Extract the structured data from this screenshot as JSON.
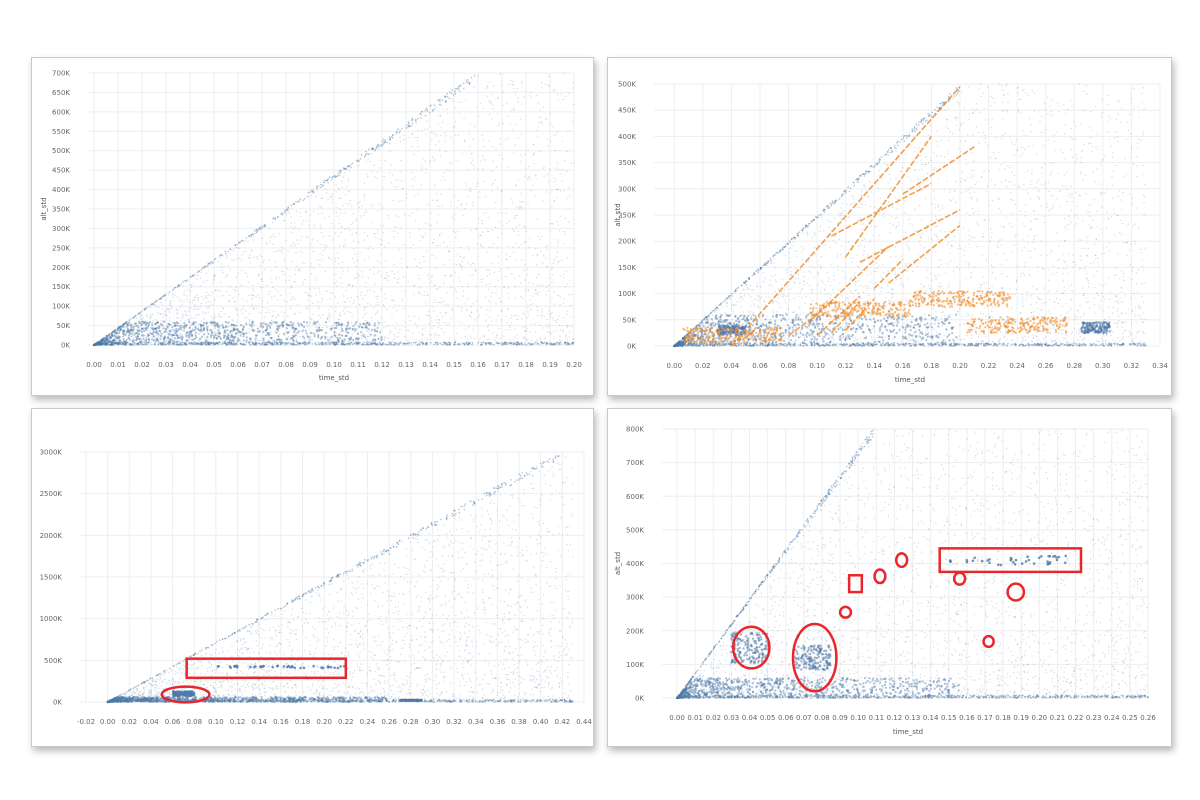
{
  "colors": {
    "series_blue": "#4e79a7",
    "series_orange": "#f28e2b",
    "highlight_red": "#e8262b",
    "grid": "#eeeeee",
    "tick_text": "#666666"
  },
  "chart_data": [
    {
      "id": "tl",
      "type": "scatter",
      "xlabel": "time_std",
      "ylabel": "alt_std",
      "xticks": [
        "0.00",
        "0.01",
        "0.02",
        "0.03",
        "0.04",
        "0.05",
        "0.06",
        "0.07",
        "0.08",
        "0.09",
        "0.10",
        "0.11",
        "0.12",
        "0.13",
        "0.14",
        "0.15",
        "0.16",
        "0.17",
        "0.18",
        "0.19",
        "0.20"
      ],
      "yticks": [
        "0K",
        "50K",
        "100K",
        "150K",
        "200K",
        "250K",
        "300K",
        "350K",
        "400K",
        "450K",
        "500K",
        "550K",
        "600K",
        "650K",
        "700K"
      ],
      "xlim": [
        0,
        0.2
      ],
      "ylim": [
        0,
        700000
      ],
      "grid": true,
      "series": [
        {
          "color": "#4e79a7",
          "pattern": {
            "fan_slope_k_per_unit": 4400,
            "edge_line": [
              [
                0.0,
                0
              ],
              [
                0.15,
                670
              ]
            ],
            "dense_core": [
              [
                0.0,
                0
              ],
              [
                0.06,
                40
              ]
            ],
            "x_max": 0.2
          }
        }
      ]
    },
    {
      "id": "tr",
      "type": "scatter",
      "xlabel": "time_std",
      "ylabel": "alt_std",
      "xticks": [
        "0.00",
        "0.02",
        "0.04",
        "0.06",
        "0.08",
        "0.10",
        "0.12",
        "0.14",
        "0.16",
        "0.18",
        "0.20",
        "0.22",
        "0.24",
        "0.26",
        "0.28",
        "0.30",
        "0.32",
        "0.34"
      ],
      "yticks": [
        "0K",
        "50K",
        "100K",
        "150K",
        "200K",
        "250K",
        "300K",
        "350K",
        "400K",
        "450K",
        "500K"
      ],
      "xlim": [
        -0.01,
        0.34
      ],
      "ylim": [
        0,
        500000
      ],
      "grid": true,
      "series": [
        {
          "color": "#4e79a7",
          "pattern": {
            "fan_slope_k_per_unit": 2500,
            "x_max": 0.33,
            "clusters": [
              [
                0.04,
                30
              ],
              [
                0.295,
                35
              ]
            ]
          }
        },
        {
          "color": "#f28e2b",
          "segments": [
            [
              [
                0.04,
                0
              ],
              [
                0.2,
                495
              ]
            ],
            [
              [
                0.1,
                60
              ],
              [
                0.15,
                190
              ]
            ],
            [
              [
                0.12,
                170
              ],
              [
                0.18,
                400
              ]
            ],
            [
              [
                0.11,
                210
              ],
              [
                0.18,
                310
              ]
            ],
            [
              [
                0.13,
                160
              ],
              [
                0.2,
                260
              ]
            ],
            [
              [
                0.15,
                120
              ],
              [
                0.2,
                230
              ]
            ],
            [
              [
                0.16,
                290
              ],
              [
                0.21,
                380
              ]
            ],
            [
              [
                0.08,
                20
              ],
              [
                0.1,
                60
              ]
            ],
            [
              [
                0.1,
                20
              ],
              [
                0.13,
                95
              ]
            ],
            [
              [
                0.11,
                25
              ],
              [
                0.13,
                85
              ]
            ],
            [
              [
                0.12,
                30
              ],
              [
                0.14,
                90
              ]
            ],
            [
              [
                0.14,
                110
              ],
              [
                0.16,
                165
              ]
            ]
          ],
          "clusters": [
            [
              0.24,
              40
            ],
            [
              0.2,
              90
            ],
            [
              0.13,
              70
            ],
            [
              0.04,
              20
            ]
          ]
        }
      ]
    },
    {
      "id": "bl",
      "type": "scatter",
      "xlabel": "",
      "ylabel": "",
      "xticks": [
        "-0.02",
        "0.00",
        "0.02",
        "0.04",
        "0.06",
        "0.08",
        "0.10",
        "0.12",
        "0.14",
        "0.16",
        "0.18",
        "0.20",
        "0.22",
        "0.24",
        "0.26",
        "0.28",
        "0.30",
        "0.32",
        "0.34",
        "0.36",
        "0.38",
        "0.40",
        "0.42",
        "0.44"
      ],
      "yticks": [
        "0K",
        "500K",
        "1000K",
        "1500K",
        "2000K",
        "2500K",
        "3000K"
      ],
      "xlim": [
        -0.02,
        0.44
      ],
      "ylim": [
        0,
        3000000
      ],
      "grid": true,
      "series": [
        {
          "color": "#4e79a7",
          "pattern": {
            "fan_slope_k_per_unit": 7200,
            "x_max": 0.43,
            "clusters": [
              [
                0.07,
                100
              ],
              [
                0.28,
                20
              ]
            ],
            "row_y_k": 420,
            "row_x": [
              0.09,
              0.22
            ]
          }
        }
      ],
      "highlights": [
        {
          "shape": "ellipse",
          "cx": 0.072,
          "cy": 90,
          "rx": 0.022,
          "ry": 95
        },
        {
          "shape": "rect",
          "x0": 0.073,
          "y0": 290,
          "x1": 0.22,
          "y1": 520
        }
      ]
    },
    {
      "id": "br",
      "type": "scatter",
      "xlabel": "time_std",
      "ylabel": "alt_std",
      "xticks": [
        "0.00",
        "0.01",
        "0.02",
        "0.03",
        "0.04",
        "0.05",
        "0.06",
        "0.07",
        "0.08",
        "0.09",
        "0.10",
        "0.11",
        "0.12",
        "0.13",
        "0.14",
        "0.15",
        "0.16",
        "0.17",
        "0.18",
        "0.19",
        "0.20",
        "0.21",
        "0.22",
        "0.23",
        "0.24",
        "0.25",
        "0.26"
      ],
      "yticks": [
        "0K",
        "100K",
        "200K",
        "300K",
        "400K",
        "500K",
        "600K",
        "700K",
        "800K"
      ],
      "xlim": [
        -0.005,
        0.26
      ],
      "ylim": [
        0,
        800000
      ],
      "grid": true,
      "series": [
        {
          "color": "#4e79a7",
          "pattern": {
            "fan_slope_k_per_unit": 7400,
            "x_max": 0.26,
            "clusters": [
              [
                0.04,
                150
              ],
              [
                0.075,
                120
              ]
            ],
            "row_y_k": 410,
            "row_x": [
              0.15,
              0.215
            ]
          }
        }
      ],
      "highlights": [
        {
          "shape": "ellipse",
          "cx": 0.041,
          "cy": 150,
          "rx": 0.01,
          "ry": 62
        },
        {
          "shape": "ellipse",
          "cx": 0.076,
          "cy": 120,
          "rx": 0.012,
          "ry": 100
        },
        {
          "shape": "ellipse",
          "cx": 0.093,
          "cy": 255,
          "rx": 0.003,
          "ry": 16
        },
        {
          "shape": "rect",
          "x0": 0.095,
          "y0": 315,
          "x1": 0.102,
          "y1": 365
        },
        {
          "shape": "ellipse",
          "cx": 0.112,
          "cy": 362,
          "rx": 0.003,
          "ry": 20
        },
        {
          "shape": "ellipse",
          "cx": 0.124,
          "cy": 410,
          "rx": 0.003,
          "ry": 20
        },
        {
          "shape": "ellipse",
          "cx": 0.156,
          "cy": 355,
          "rx": 0.003,
          "ry": 18
        },
        {
          "shape": "ellipse",
          "cx": 0.187,
          "cy": 315,
          "rx": 0.0045,
          "ry": 25
        },
        {
          "shape": "ellipse",
          "cx": 0.172,
          "cy": 168,
          "rx": 0.0028,
          "ry": 16
        },
        {
          "shape": "rect",
          "x0": 0.145,
          "y0": 375,
          "x1": 0.223,
          "y1": 445
        }
      ]
    }
  ]
}
